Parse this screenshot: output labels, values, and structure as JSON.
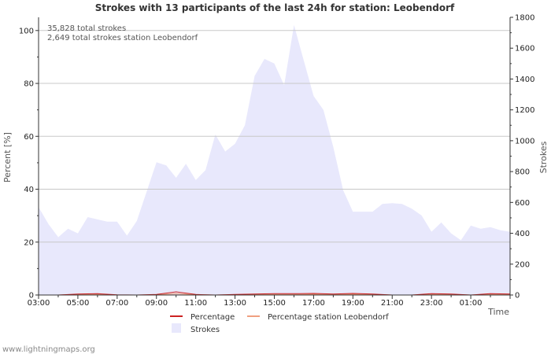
{
  "chart_data": {
    "type": "area",
    "title": "Strokes with 13 participants of the last 24h for station: Leobendorf",
    "annotations": [
      "35,828 total strokes",
      "2,649 total strokes station Leobendorf"
    ],
    "xlabel": "Time",
    "ylabel_left": "Percent   [%]",
    "ylabel_right": "Strokes",
    "ylim_left": [
      0,
      105
    ],
    "ylim_right": [
      0,
      1800
    ],
    "x_tick_labels": [
      "03:00",
      "05:00",
      "07:00",
      "09:00",
      "11:00",
      "13:00",
      "15:00",
      "17:00",
      "19:00",
      "21:00",
      "23:00",
      "01:00"
    ],
    "y_left_ticks": [
      0,
      20,
      40,
      60,
      80,
      100
    ],
    "y_right_ticks": [
      0,
      200,
      400,
      600,
      800,
      1000,
      1200,
      1400,
      1600,
      1800
    ],
    "x_range_hours": [
      0,
      24
    ],
    "series": [
      {
        "name": "Strokes",
        "axis": "right",
        "color": "#e8e8fc",
        "x": [
          0,
          0.5,
          1,
          1.5,
          2,
          2.5,
          3,
          3.5,
          4,
          4.5,
          5,
          5.5,
          6,
          6.5,
          7,
          7.5,
          8,
          8.5,
          9,
          9.5,
          10,
          10.5,
          11,
          11.5,
          12,
          12.5,
          13,
          13.5,
          14,
          14.5,
          15,
          15.5,
          16,
          16.5,
          17,
          17.5,
          18,
          18.5,
          19,
          19.5,
          20,
          20.5,
          21,
          21.5,
          22,
          22.5,
          23,
          23.5,
          24
        ],
        "values": [
          570,
          460,
          375,
          430,
          400,
          505,
          490,
          475,
          475,
          385,
          480,
          670,
          860,
          840,
          760,
          850,
          745,
          810,
          1040,
          930,
          980,
          1100,
          1420,
          1530,
          1500,
          1360,
          1750,
          1520,
          1290,
          1200,
          960,
          680,
          540,
          540,
          540,
          590,
          595,
          590,
          560,
          515,
          410,
          470,
          400,
          355,
          450,
          430,
          440,
          420,
          410
        ]
      },
      {
        "name": "Percentage",
        "axis": "left",
        "color": "#cc2222",
        "x": [
          0,
          1,
          2,
          3,
          4,
          5,
          6,
          7,
          8,
          9,
          10,
          11,
          12,
          13,
          14,
          15,
          16,
          17,
          18,
          19,
          20,
          21,
          22,
          23,
          24
        ],
        "values": [
          0,
          0,
          0.4,
          0.5,
          0.1,
          0,
          0.2,
          1.2,
          0.2,
          0,
          0.2,
          0.4,
          0.5,
          0.5,
          0.6,
          0.4,
          0.6,
          0.4,
          0,
          0,
          0.5,
          0.4,
          0,
          0.5,
          0.4
        ]
      },
      {
        "name": "Percentage station Leobendorf",
        "axis": "left",
        "color": "#f0a080",
        "x": [
          0,
          1,
          2,
          3,
          4,
          5,
          6,
          7,
          8,
          9,
          10,
          11,
          12,
          13,
          14,
          15,
          16,
          17,
          18,
          19,
          20,
          21,
          22,
          23,
          24
        ],
        "values": [
          0,
          0,
          0.2,
          0.2,
          0,
          0,
          0.1,
          0.5,
          0.1,
          0,
          0.1,
          0.2,
          0.2,
          0.2,
          0.3,
          0.2,
          0.3,
          0.2,
          0,
          0,
          0.2,
          0.2,
          0,
          0.2,
          0.2
        ]
      }
    ],
    "legend": [
      "Percentage",
      "Percentage station Leobendorf",
      "Strokes"
    ],
    "legend_position": "bottom",
    "grid": true
  },
  "credit": "www.lightningmaps.org"
}
